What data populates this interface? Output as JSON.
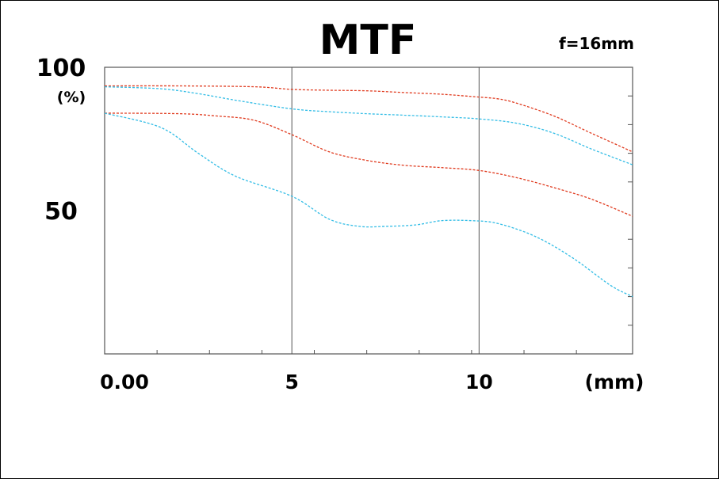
{
  "chart_data": {
    "type": "line",
    "title": "MTF",
    "subtitle": "f=16mm",
    "ylabel": "(%)",
    "xlabel": "(mm)",
    "xlim": [
      0,
      14.1
    ],
    "ylim": [
      0,
      100
    ],
    "y_tick_labels": [
      {
        "value": 100,
        "label": "100"
      },
      {
        "value": 50,
        "label": "50"
      }
    ],
    "x_tick_labels": [
      {
        "value": 0,
        "label": "0.00"
      },
      {
        "value": 5,
        "label": "5"
      },
      {
        "value": 10,
        "label": "10"
      }
    ],
    "x_minor_ticks": [
      1.4,
      2.8,
      4.2,
      5.6,
      7.0,
      8.4,
      9.8,
      11.2,
      12.6
    ],
    "y_minor_ticks": [
      10,
      20,
      30,
      40,
      60,
      70,
      80,
      90
    ],
    "vertical_gridlines": [
      5,
      10
    ],
    "colors": {
      "red": "#e03a1e",
      "cyan": "#33bde6",
      "axis": "#555555"
    },
    "series": [
      {
        "color": "red",
        "x": [
          0,
          2,
          4,
          5,
          6,
          7,
          8,
          9,
          10,
          10.5,
          11,
          12,
          13,
          14.1
        ],
        "y": [
          93.5,
          93.5,
          93.2,
          92.3,
          92,
          91.8,
          91.2,
          90.6,
          89.6,
          89,
          87.5,
          83,
          77,
          70.5
        ]
      },
      {
        "color": "cyan",
        "x": [
          0,
          1.5,
          2.5,
          3.5,
          5,
          6,
          7,
          8,
          9,
          10,
          11,
          12,
          13,
          14.1
        ],
        "y": [
          93.2,
          92.5,
          90.8,
          88.5,
          85.5,
          84.5,
          83.8,
          83.3,
          82.7,
          82,
          80.5,
          77,
          71.5,
          66
        ]
      },
      {
        "color": "red",
        "x": [
          0,
          2,
          3,
          4,
          5,
          6,
          7,
          8,
          9,
          10,
          11,
          12,
          13,
          14.1
        ],
        "y": [
          84,
          83.8,
          83,
          81.5,
          76.5,
          70.5,
          67.5,
          65.8,
          65,
          64,
          61.5,
          58,
          54,
          48
        ]
      },
      {
        "color": "cyan",
        "x": [
          0,
          1.5,
          2.5,
          3.5,
          5,
          6,
          6.8,
          7.5,
          8.3,
          9,
          9.8,
          10.5,
          11.5,
          12.5,
          13.5,
          14.1
        ],
        "y": [
          84,
          79,
          70,
          62,
          55,
          47,
          44.5,
          44.5,
          45,
          46.5,
          46.5,
          45.5,
          41,
          33.5,
          24,
          20
        ]
      }
    ]
  }
}
